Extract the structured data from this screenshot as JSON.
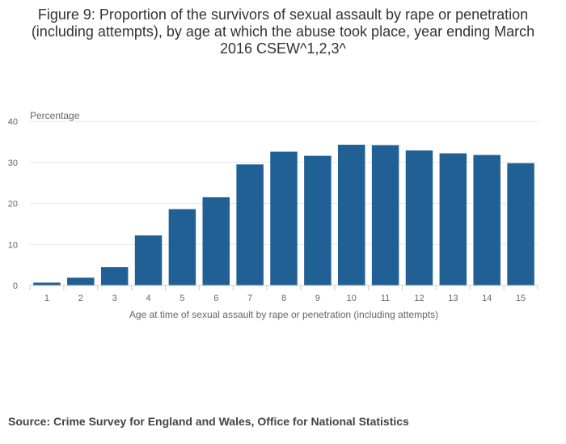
{
  "title": "Figure 9: Proportion of the survivors of sexual assault by rape or penetration (including attempts), by age at which the abuse took place, year ending March 2016 CSEW^1,2,3^",
  "source": "Source: Crime Survey for England and Wales, Office for National Statistics",
  "colors": {
    "bar": "#206095",
    "grid": "#e6e6e6",
    "axis": "#cccccc",
    "text": "#666666"
  },
  "chart_data": {
    "type": "bar",
    "categories": [
      "1",
      "2",
      "3",
      "4",
      "5",
      "6",
      "7",
      "8",
      "9",
      "10",
      "11",
      "12",
      "13",
      "14",
      "15"
    ],
    "values": [
      0.7,
      1.9,
      4.5,
      12.2,
      18.6,
      21.5,
      29.5,
      32.6,
      31.6,
      34.3,
      34.2,
      32.9,
      32.2,
      31.8,
      29.8
    ],
    "ylabel": "Percentage",
    "xlabel": "Age at time of sexual assault by rape or penetration (including attempts)",
    "ylim": [
      0,
      40
    ],
    "yticks": [
      0,
      10,
      20,
      30,
      40
    ],
    "grid": true
  }
}
